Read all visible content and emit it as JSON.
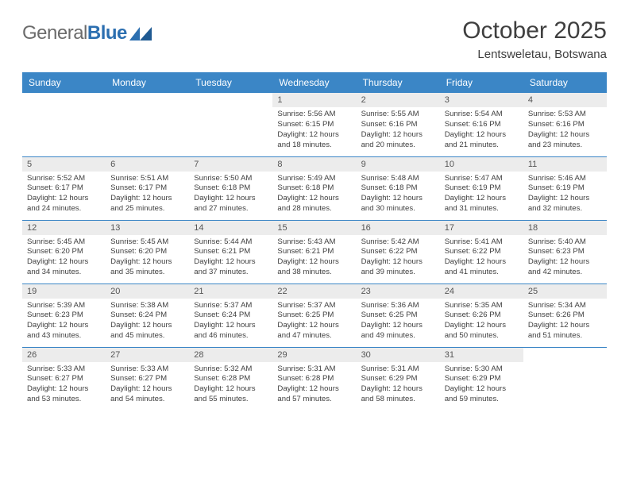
{
  "logo": {
    "text_a": "General",
    "text_b": "Blue",
    "icon_color": "#2c6fb0"
  },
  "title": "October 2025",
  "subtitle": "Lentsweletau, Botswana",
  "header_bg": "#3b86c6",
  "header_fg": "#ffffff",
  "row_border": "#3b86c6",
  "daynum_bg": "#ececec",
  "weekdays": [
    "Sunday",
    "Monday",
    "Tuesday",
    "Wednesday",
    "Thursday",
    "Friday",
    "Saturday"
  ],
  "weeks": [
    [
      {
        "n": "",
        "sr": "",
        "ss": "",
        "dl": ""
      },
      {
        "n": "",
        "sr": "",
        "ss": "",
        "dl": ""
      },
      {
        "n": "",
        "sr": "",
        "ss": "",
        "dl": ""
      },
      {
        "n": "1",
        "sr": "5:56 AM",
        "ss": "6:15 PM",
        "dl": "12 hours and 18 minutes."
      },
      {
        "n": "2",
        "sr": "5:55 AM",
        "ss": "6:16 PM",
        "dl": "12 hours and 20 minutes."
      },
      {
        "n": "3",
        "sr": "5:54 AM",
        "ss": "6:16 PM",
        "dl": "12 hours and 21 minutes."
      },
      {
        "n": "4",
        "sr": "5:53 AM",
        "ss": "6:16 PM",
        "dl": "12 hours and 23 minutes."
      }
    ],
    [
      {
        "n": "5",
        "sr": "5:52 AM",
        "ss": "6:17 PM",
        "dl": "12 hours and 24 minutes."
      },
      {
        "n": "6",
        "sr": "5:51 AM",
        "ss": "6:17 PM",
        "dl": "12 hours and 25 minutes."
      },
      {
        "n": "7",
        "sr": "5:50 AM",
        "ss": "6:18 PM",
        "dl": "12 hours and 27 minutes."
      },
      {
        "n": "8",
        "sr": "5:49 AM",
        "ss": "6:18 PM",
        "dl": "12 hours and 28 minutes."
      },
      {
        "n": "9",
        "sr": "5:48 AM",
        "ss": "6:18 PM",
        "dl": "12 hours and 30 minutes."
      },
      {
        "n": "10",
        "sr": "5:47 AM",
        "ss": "6:19 PM",
        "dl": "12 hours and 31 minutes."
      },
      {
        "n": "11",
        "sr": "5:46 AM",
        "ss": "6:19 PM",
        "dl": "12 hours and 32 minutes."
      }
    ],
    [
      {
        "n": "12",
        "sr": "5:45 AM",
        "ss": "6:20 PM",
        "dl": "12 hours and 34 minutes."
      },
      {
        "n": "13",
        "sr": "5:45 AM",
        "ss": "6:20 PM",
        "dl": "12 hours and 35 minutes."
      },
      {
        "n": "14",
        "sr": "5:44 AM",
        "ss": "6:21 PM",
        "dl": "12 hours and 37 minutes."
      },
      {
        "n": "15",
        "sr": "5:43 AM",
        "ss": "6:21 PM",
        "dl": "12 hours and 38 minutes."
      },
      {
        "n": "16",
        "sr": "5:42 AM",
        "ss": "6:22 PM",
        "dl": "12 hours and 39 minutes."
      },
      {
        "n": "17",
        "sr": "5:41 AM",
        "ss": "6:22 PM",
        "dl": "12 hours and 41 minutes."
      },
      {
        "n": "18",
        "sr": "5:40 AM",
        "ss": "6:23 PM",
        "dl": "12 hours and 42 minutes."
      }
    ],
    [
      {
        "n": "19",
        "sr": "5:39 AM",
        "ss": "6:23 PM",
        "dl": "12 hours and 43 minutes."
      },
      {
        "n": "20",
        "sr": "5:38 AM",
        "ss": "6:24 PM",
        "dl": "12 hours and 45 minutes."
      },
      {
        "n": "21",
        "sr": "5:37 AM",
        "ss": "6:24 PM",
        "dl": "12 hours and 46 minutes."
      },
      {
        "n": "22",
        "sr": "5:37 AM",
        "ss": "6:25 PM",
        "dl": "12 hours and 47 minutes."
      },
      {
        "n": "23",
        "sr": "5:36 AM",
        "ss": "6:25 PM",
        "dl": "12 hours and 49 minutes."
      },
      {
        "n": "24",
        "sr": "5:35 AM",
        "ss": "6:26 PM",
        "dl": "12 hours and 50 minutes."
      },
      {
        "n": "25",
        "sr": "5:34 AM",
        "ss": "6:26 PM",
        "dl": "12 hours and 51 minutes."
      }
    ],
    [
      {
        "n": "26",
        "sr": "5:33 AM",
        "ss": "6:27 PM",
        "dl": "12 hours and 53 minutes."
      },
      {
        "n": "27",
        "sr": "5:33 AM",
        "ss": "6:27 PM",
        "dl": "12 hours and 54 minutes."
      },
      {
        "n": "28",
        "sr": "5:32 AM",
        "ss": "6:28 PM",
        "dl": "12 hours and 55 minutes."
      },
      {
        "n": "29",
        "sr": "5:31 AM",
        "ss": "6:28 PM",
        "dl": "12 hours and 57 minutes."
      },
      {
        "n": "30",
        "sr": "5:31 AM",
        "ss": "6:29 PM",
        "dl": "12 hours and 58 minutes."
      },
      {
        "n": "31",
        "sr": "5:30 AM",
        "ss": "6:29 PM",
        "dl": "12 hours and 59 minutes."
      },
      {
        "n": "",
        "sr": "",
        "ss": "",
        "dl": ""
      }
    ]
  ],
  "labels": {
    "sunrise": "Sunrise:",
    "sunset": "Sunset:",
    "daylight": "Daylight:"
  }
}
